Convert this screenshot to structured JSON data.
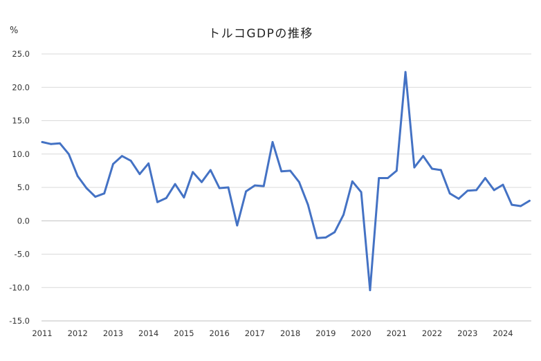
{
  "chart_data": {
    "type": "line",
    "title": "トルコGDPの推移",
    "unit_label": "%",
    "xlabel": "",
    "ylabel": "",
    "ylim": [
      -15,
      25
    ],
    "y_ticks": [
      25,
      20,
      15,
      10,
      5,
      0,
      -5,
      -10,
      -15
    ],
    "y_tick_labels": [
      "25.0",
      "20.0",
      "15.0",
      "10.0",
      "5.0",
      "0.0",
      "-5.0",
      "-10.0",
      "-15.0"
    ],
    "x_tick_labels": [
      "2011",
      "2012",
      "2013",
      "2014",
      "2015",
      "2016",
      "2017",
      "2018",
      "2019",
      "2020",
      "2021",
      "2022",
      "2023",
      "2024"
    ],
    "grid": true,
    "legend": "none",
    "x_start_label": "2011",
    "periods_per_year": 4,
    "series": [
      {
        "color": "#4472c4",
        "values": [
          11.8,
          11.5,
          11.6,
          10.0,
          6.7,
          4.9,
          3.6,
          4.1,
          8.5,
          9.7,
          9.0,
          7.0,
          8.6,
          2.8,
          3.4,
          5.5,
          3.5,
          7.3,
          5.8,
          7.6,
          4.9,
          5.0,
          -0.7,
          4.4,
          5.3,
          5.2,
          11.8,
          7.4,
          7.5,
          5.8,
          2.4,
          -2.6,
          -2.5,
          -1.7,
          0.9,
          5.9,
          4.3,
          -10.4,
          6.4,
          6.4,
          7.5,
          22.3,
          8.0,
          9.7,
          7.8,
          7.6,
          4.1,
          3.3,
          4.5,
          4.6,
          6.4,
          4.6,
          5.4,
          2.4,
          2.2,
          3.0
        ]
      }
    ]
  }
}
